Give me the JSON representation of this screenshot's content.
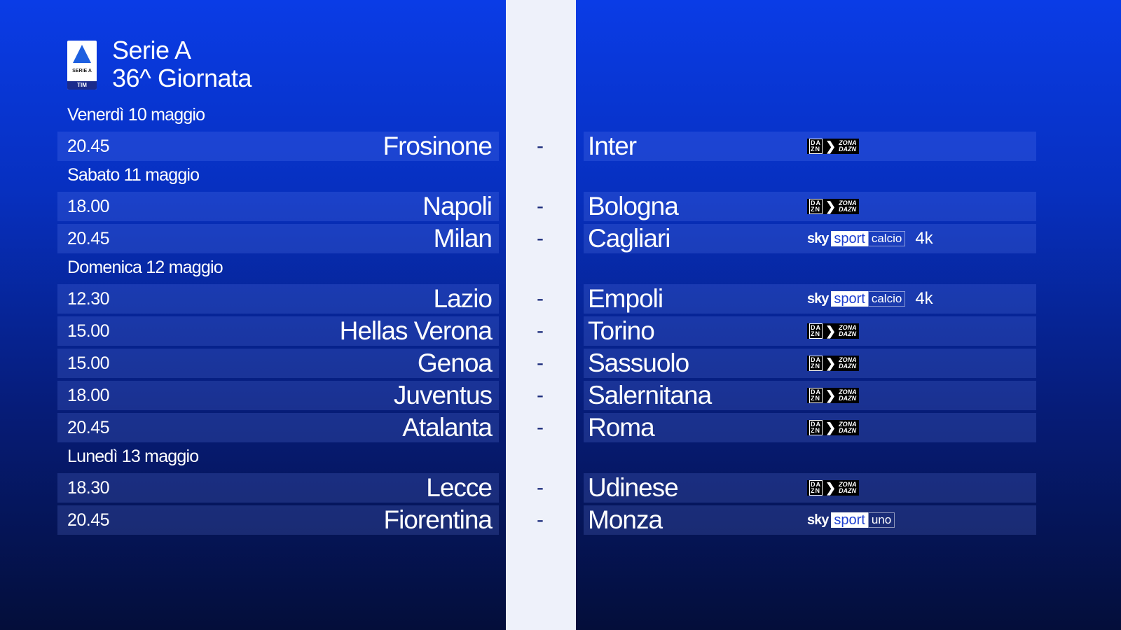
{
  "header": {
    "league": "Serie A",
    "round": "36^ Giornata",
    "logo_text": "SERIE A",
    "logo_sponsor": "TIM"
  },
  "days": [
    {
      "label": "Venerdì 10 maggio",
      "matches": [
        {
          "time": "20.45",
          "home": "Frosinone",
          "away": "Inter",
          "broadcaster": "dazn"
        }
      ]
    },
    {
      "label": "Sabato 11 maggio",
      "matches": [
        {
          "time": "18.00",
          "home": "Napoli",
          "away": "Bologna",
          "broadcaster": "dazn"
        },
        {
          "time": "20.45",
          "home": "Milan",
          "away": "Cagliari",
          "broadcaster": "sky-calcio-4k"
        }
      ]
    },
    {
      "label": "Domenica 12 maggio",
      "matches": [
        {
          "time": "12.30",
          "home": "Lazio",
          "away": "Empoli",
          "broadcaster": "sky-calcio-4k"
        },
        {
          "time": "15.00",
          "home": "Hellas Verona",
          "away": "Torino",
          "broadcaster": "dazn"
        },
        {
          "time": "15.00",
          "home": "Genoa",
          "away": "Sassuolo",
          "broadcaster": "dazn"
        },
        {
          "time": "18.00",
          "home": "Juventus",
          "away": "Salernitana",
          "broadcaster": "dazn"
        },
        {
          "time": "20.45",
          "home": "Atalanta",
          "away": "Roma",
          "broadcaster": "dazn"
        }
      ]
    },
    {
      "label": "Lunedì 13 maggio",
      "matches": [
        {
          "time": "18.30",
          "home": "Lecce",
          "away": "Udinese",
          "broadcaster": "dazn"
        },
        {
          "time": "20.45",
          "home": "Fiorentina",
          "away": "Monza",
          "broadcaster": "sky-uno"
        }
      ]
    }
  ],
  "separator": "-",
  "broadcasters": {
    "dazn": {
      "box1": "DA",
      "box2": "ZN",
      "zona1": "ZONA",
      "zona2": "DAZN"
    },
    "sky-calcio-4k": {
      "sky": "sky",
      "sport": "sport",
      "channel": "calcio",
      "quality": "4k"
    },
    "sky-uno": {
      "sky": "sky",
      "sport": "sport",
      "channel": "uno"
    }
  }
}
